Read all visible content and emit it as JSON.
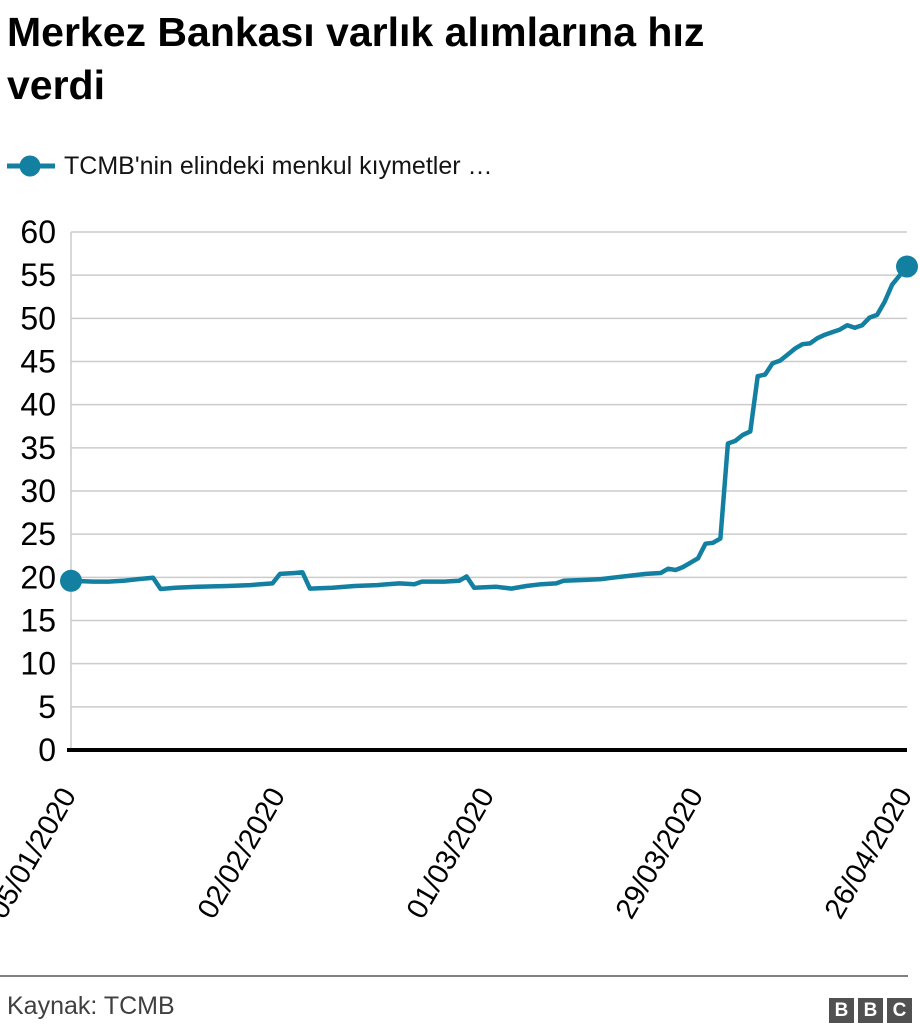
{
  "title": "Merkez Bankası varlık alımlarına hız verdi",
  "legend": {
    "label": "TCMB'nin elindeki menkul kıymetler …"
  },
  "footer": {
    "source": "Kaynak: TCMB",
    "logo_letters": [
      "B",
      "B",
      "C"
    ]
  },
  "colors": {
    "series_line": "#1380A1",
    "gridline": "#cccccc",
    "axis": "#000000",
    "tick_label": "#000000",
    "source_text": "#404040",
    "divider": "#808080",
    "logo_background": "#515151"
  },
  "chart_data": {
    "type": "line",
    "title": "Merkez Bankası varlık alımlarına hız verdi",
    "xlabel": "",
    "ylabel": "",
    "ylim": [
      0,
      60
    ],
    "y_ticks": [
      0,
      5,
      10,
      15,
      20,
      25,
      30,
      35,
      40,
      45,
      50,
      55,
      60
    ],
    "grid": "horizontal",
    "legend_position": "top-left",
    "markers": "endpoints",
    "x_unit": "days since first tick date",
    "x_max_day": 112,
    "x_ticks": [
      {
        "day": 0,
        "label": "05/01/2020"
      },
      {
        "day": 28,
        "label": "02/02/2020"
      },
      {
        "day": 56,
        "label": "01/03/2020"
      },
      {
        "day": 84,
        "label": "29/03/2020"
      },
      {
        "day": 112,
        "label": "26/04/2020"
      }
    ],
    "series": [
      {
        "name": "TCMB'nin elindeki menkul kıymetler …",
        "points": [
          [
            0,
            19.6
          ],
          [
            3,
            19.5
          ],
          [
            5,
            19.5
          ],
          [
            7,
            19.6
          ],
          [
            9,
            19.8
          ],
          [
            11,
            19.95
          ],
          [
            12,
            18.65
          ],
          [
            14,
            18.8
          ],
          [
            17,
            18.9
          ],
          [
            21,
            19.0
          ],
          [
            24,
            19.1
          ],
          [
            27,
            19.3
          ],
          [
            28,
            20.4
          ],
          [
            30,
            20.5
          ],
          [
            31,
            20.6
          ],
          [
            32,
            18.7
          ],
          [
            35,
            18.8
          ],
          [
            38,
            19.0
          ],
          [
            41,
            19.1
          ],
          [
            44,
            19.3
          ],
          [
            46,
            19.2
          ],
          [
            47,
            19.5
          ],
          [
            50,
            19.5
          ],
          [
            52,
            19.6
          ],
          [
            53,
            20.1
          ],
          [
            54,
            18.8
          ],
          [
            57,
            18.9
          ],
          [
            59,
            18.7
          ],
          [
            61,
            19.0
          ],
          [
            63,
            19.2
          ],
          [
            65,
            19.3
          ],
          [
            66,
            19.6
          ],
          [
            69,
            19.7
          ],
          [
            71,
            19.8
          ],
          [
            73,
            20.0
          ],
          [
            75,
            20.2
          ],
          [
            77,
            20.4
          ],
          [
            79,
            20.5
          ],
          [
            80,
            21.0
          ],
          [
            81,
            20.85
          ],
          [
            82,
            21.2
          ],
          [
            83,
            21.7
          ],
          [
            84,
            22.2
          ],
          [
            85,
            23.9
          ],
          [
            86,
            24.0
          ],
          [
            87,
            24.5
          ],
          [
            88,
            35.5
          ],
          [
            89,
            35.8
          ],
          [
            90,
            36.5
          ],
          [
            91,
            36.9
          ],
          [
            92,
            43.3
          ],
          [
            93,
            43.5
          ],
          [
            94,
            44.8
          ],
          [
            95,
            45.1
          ],
          [
            96,
            45.8
          ],
          [
            97,
            46.5
          ],
          [
            98,
            47.0
          ],
          [
            99,
            47.1
          ],
          [
            100,
            47.7
          ],
          [
            101,
            48.1
          ],
          [
            102,
            48.4
          ],
          [
            103,
            48.7
          ],
          [
            104,
            49.2
          ],
          [
            105,
            48.9
          ],
          [
            106,
            49.2
          ],
          [
            107,
            50.1
          ],
          [
            108,
            50.4
          ],
          [
            109,
            51.9
          ],
          [
            110,
            53.9
          ],
          [
            112,
            56.0
          ]
        ]
      }
    ]
  }
}
